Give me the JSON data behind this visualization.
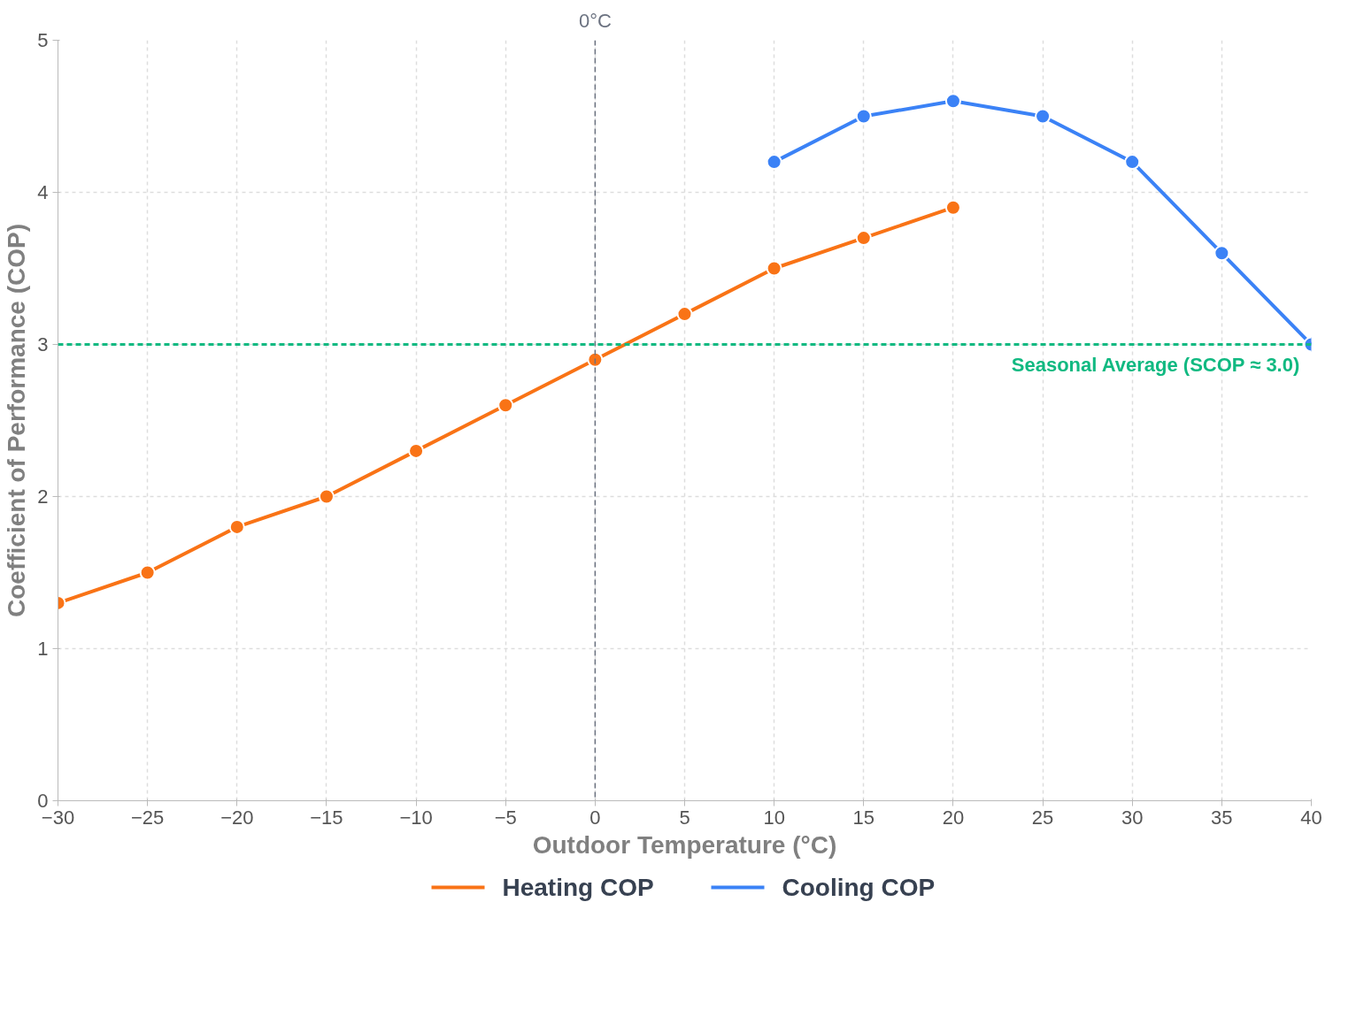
{
  "chart_data": {
    "type": "line",
    "xlabel": "Outdoor Temperature (°C)",
    "ylabel": "Coefficient of Performance (COP)",
    "series": [
      {
        "name": "Heating COP",
        "color": "#f97316",
        "x": [
          -30,
          -25,
          -20,
          -15,
          -10,
          -5,
          0,
          5,
          10,
          15,
          20
        ],
        "values": [
          1.3,
          1.5,
          1.8,
          2.0,
          2.3,
          2.6,
          2.9,
          3.2,
          3.5,
          3.7,
          3.9
        ]
      },
      {
        "name": "Cooling COP",
        "color": "#3b82f6",
        "x": [
          10,
          15,
          20,
          25,
          30,
          35,
          40
        ],
        "values": [
          4.2,
          4.5,
          4.6,
          4.5,
          4.2,
          3.6,
          3.0
        ]
      }
    ],
    "xlim": [
      -30,
      40
    ],
    "xticks": [
      -30,
      -25,
      -20,
      -15,
      -10,
      -5,
      0,
      5,
      10,
      15,
      20,
      25,
      30,
      35,
      40
    ],
    "ylim": [
      0,
      5
    ],
    "yticks": [
      0,
      1,
      2,
      3,
      4,
      5
    ],
    "ref_lines": [
      {
        "axis": "x",
        "value": 0,
        "label": "0°C",
        "color": "#6b7280",
        "line_style": "dashed"
      },
      {
        "axis": "y",
        "value": 3,
        "label": "Seasonal Average (SCOP ≈ 3.0)",
        "color": "#10b981",
        "line_style": "dashed"
      }
    ],
    "grid": true,
    "legend": "bottom",
    "marker": "circle",
    "line_style": "solid"
  }
}
